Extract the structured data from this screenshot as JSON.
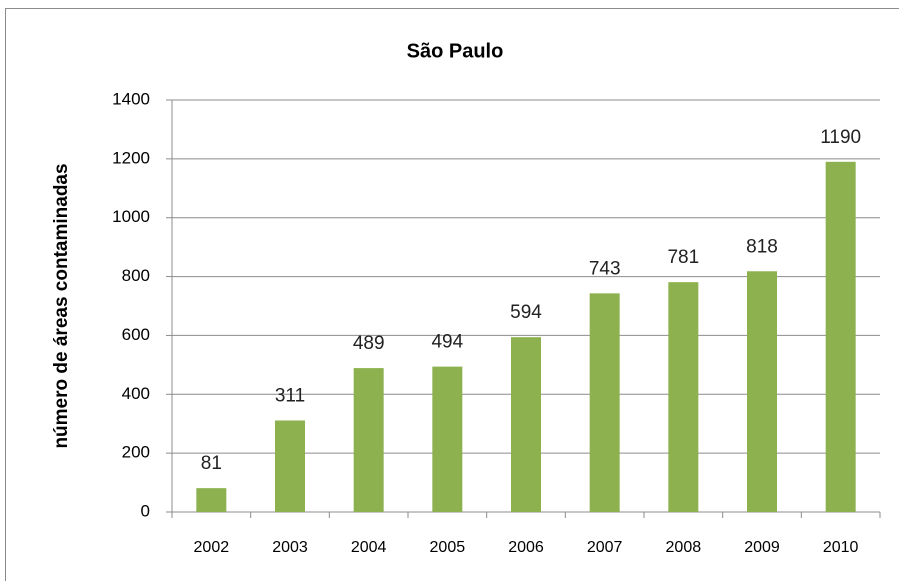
{
  "chart_data": {
    "type": "bar",
    "title": "São Paulo",
    "y_label": "número de áreas contaminadas",
    "categories": [
      "2002",
      "2003",
      "2004",
      "2005",
      "2006",
      "2007",
      "2008",
      "2009",
      "2010"
    ],
    "values": [
      81,
      311,
      489,
      494,
      594,
      743,
      781,
      818,
      1190
    ],
    "color": "#8db14e",
    "ylim": [
      0,
      1400
    ],
    "yticks": [
      0,
      200,
      400,
      600,
      800,
      1000,
      1200,
      1400
    ],
    "grid": true
  }
}
